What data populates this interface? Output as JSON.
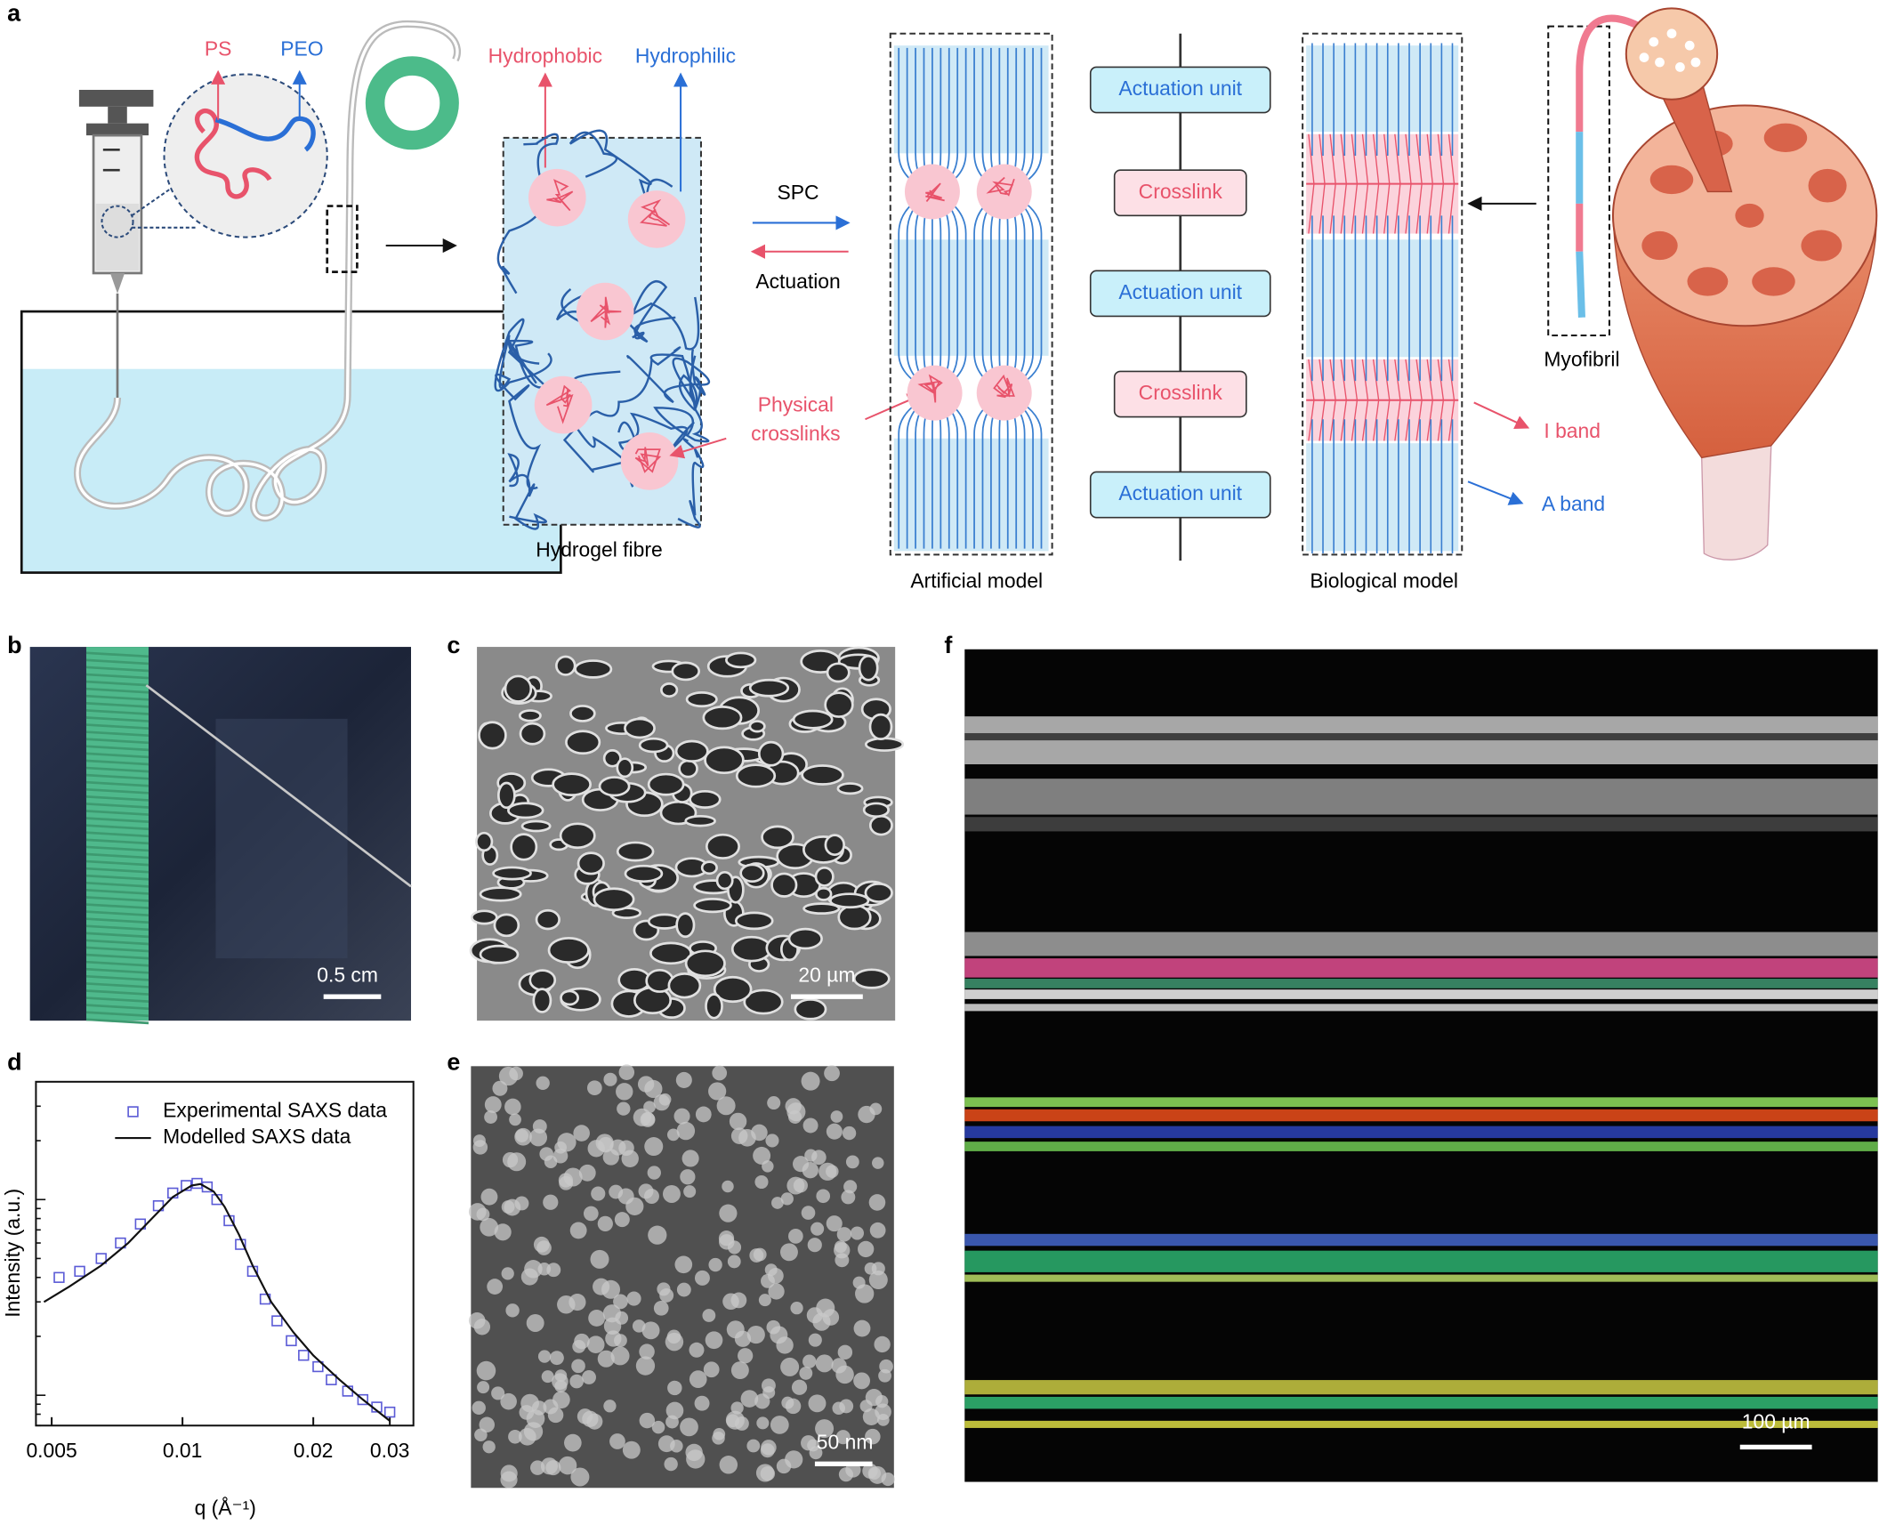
{
  "panel_labels": [
    "a",
    "b",
    "c",
    "d",
    "e",
    "f"
  ],
  "schematic": {
    "ps_label": "PS",
    "peo_label": "PEO",
    "hydrophobic": "Hydrophobic",
    "hydrophilic": "Hydrophilic",
    "spc": "SPC",
    "actuation": "Actuation",
    "physical_crosslinks": [
      "Physical",
      "crosslinks"
    ],
    "hydrogel_fibre": "Hydrogel fibre",
    "artificial_model": "Artificial model",
    "units": [
      "Actuation unit",
      "Crosslink",
      "Actuation unit",
      "Crosslink",
      "Actuation unit"
    ],
    "biological_model": "Biological model",
    "myofibril": "Myofibril",
    "i_band": "I band",
    "a_band": "A band"
  },
  "scale_bars": {
    "b": "0.5 cm",
    "c": "20 µm",
    "e": "50 nm",
    "f": "100 µm"
  },
  "saxs": {
    "type": "scatter",
    "x_label": "q (Å⁻¹)",
    "y_label": "Intensity (a.u.)",
    "log_x": true,
    "log_y": true,
    "xlim": [
      0.0046,
      0.034
    ],
    "xticks": [
      0.005,
      0.01,
      0.02,
      0.03
    ],
    "ylim": [
      0.7,
      40
    ],
    "series": [
      {
        "name": "Experimental SAXS data",
        "color": "#5b5bd6",
        "style": "open-square",
        "x": [
          0.0052,
          0.0058,
          0.0065,
          0.0072,
          0.008,
          0.0088,
          0.0095,
          0.0102,
          0.0108,
          0.0114,
          0.012,
          0.0128,
          0.0136,
          0.0145,
          0.0155,
          0.0165,
          0.0178,
          0.019,
          0.0205,
          0.022,
          0.024,
          0.026,
          0.028,
          0.03
        ],
        "values": [
          4.0,
          4.3,
          5.0,
          6.0,
          7.5,
          9.3,
          10.8,
          11.8,
          12.1,
          11.6,
          10.0,
          7.8,
          5.9,
          4.3,
          3.1,
          2.4,
          1.9,
          1.6,
          1.4,
          1.2,
          1.05,
          0.95,
          0.87,
          0.82
        ]
      },
      {
        "name": "Modelled SAXS data",
        "color": "#111111",
        "style": "line",
        "x": [
          0.0048,
          0.0055,
          0.0065,
          0.0075,
          0.0085,
          0.0095,
          0.0105,
          0.011,
          0.0118,
          0.0125,
          0.0135,
          0.0145,
          0.016,
          0.018,
          0.02,
          0.023,
          0.026,
          0.03
        ],
        "values": [
          3.0,
          3.6,
          4.6,
          6.0,
          8.0,
          10.3,
          11.8,
          12.0,
          11.0,
          9.2,
          6.6,
          4.6,
          3.0,
          2.1,
          1.6,
          1.2,
          0.95,
          0.74
        ]
      }
    ]
  }
}
